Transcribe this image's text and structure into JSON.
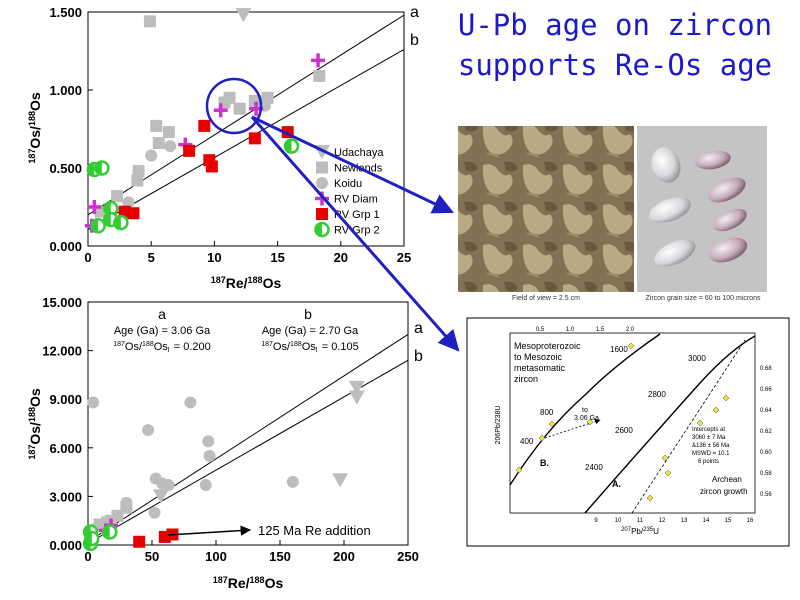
{
  "slide_title": [
    "U-Pb age on zircon",
    "supports Re-Os age"
  ],
  "colors": {
    "title": "#1a1acc",
    "gray": "#bdbdbd",
    "magenta": "#cc33cc",
    "red": "#e60000",
    "green": "#33cc33",
    "arrow": "#2020c0"
  },
  "chart_data": [
    {
      "type": "scatter",
      "xlabel": "187Re/188Os",
      "ylabel": "187Os/188Os",
      "xlim": [
        0,
        25
      ],
      "ylim": [
        0,
        1.5
      ],
      "xticks": [
        "0",
        "5",
        "10",
        "15",
        "20",
        "25"
      ],
      "yticks": [
        "0.000",
        "0.500",
        "1.000",
        "1.500"
      ],
      "line_labels": [
        "a",
        "b"
      ],
      "lines": [
        {
          "name": "a",
          "x": [
            0,
            25
          ],
          "y": [
            0.2,
            1.48
          ]
        },
        {
          "name": "b",
          "x": [
            0,
            25
          ],
          "y": [
            0.105,
            1.26
          ]
        }
      ],
      "legend": {
        "placement": "right"
      },
      "series": [
        {
          "name": "Udachaya",
          "marker": "triangle",
          "color": "#bdbdbd",
          "points": [
            [
              12.3,
              1.48
            ],
            [
              13.5,
              0.92
            ]
          ]
        },
        {
          "name": "Newlands",
          "marker": "square",
          "color": "#bdbdbd",
          "points": [
            [
              4.9,
              1.44
            ],
            [
              5.4,
              0.77
            ],
            [
              5.6,
              0.66
            ],
            [
              6.4,
              0.73
            ],
            [
              3.9,
              0.42
            ],
            [
              4.0,
              0.48
            ],
            [
              2.3,
              0.32
            ],
            [
              1.0,
              0.22
            ],
            [
              10.8,
              0.92
            ],
            [
              11.2,
              0.95
            ],
            [
              12.0,
              0.88
            ],
            [
              13.2,
              0.93
            ],
            [
              14.2,
              0.95
            ],
            [
              18.3,
              1.09
            ]
          ]
        },
        {
          "name": "Koidu",
          "marker": "circle",
          "color": "#bdbdbd",
          "points": [
            [
              6.5,
              0.64
            ],
            [
              5.0,
              0.58
            ],
            [
              3.2,
              0.28
            ],
            [
              14.0,
              0.9
            ]
          ]
        },
        {
          "name": "RV Diam",
          "marker": "plus",
          "color": "#cc33cc",
          "points": [
            [
              18.2,
              1.19
            ],
            [
              13.3,
              0.88
            ],
            [
              10.5,
              0.87
            ],
            [
              7.7,
              0.65
            ],
            [
              0.5,
              0.25
            ],
            [
              0.3,
              0.13
            ]
          ]
        },
        {
          "name": "RV Grp 1",
          "marker": "square",
          "color": "#e60000",
          "points": [
            [
              9.2,
              0.77
            ],
            [
              9.6,
              0.55
            ],
            [
              9.8,
              0.51
            ],
            [
              8.0,
              0.61
            ],
            [
              13.2,
              0.69
            ],
            [
              15.8,
              0.73
            ],
            [
              2.9,
              0.22
            ],
            [
              3.6,
              0.21
            ]
          ]
        },
        {
          "name": "RV Grp 2",
          "marker": "halfcircle",
          "color": "#33cc33",
          "points": [
            [
              0.5,
              0.49
            ],
            [
              1.1,
              0.5
            ],
            [
              1.8,
              0.24
            ],
            [
              1.8,
              0.17
            ],
            [
              2.6,
              0.15
            ],
            [
              0.8,
              0.13
            ],
            [
              16.1,
              0.64
            ]
          ]
        }
      ]
    },
    {
      "type": "scatter",
      "xlabel": "187Re/188Os",
      "ylabel": "187Os/188Os",
      "xlim": [
        0,
        250
      ],
      "ylim": [
        0,
        15
      ],
      "xticks": [
        "0",
        "50",
        "100",
        "150",
        "200",
        "250"
      ],
      "yticks": [
        "0.000",
        "3.000",
        "6.000",
        "9.000",
        "12.000",
        "15.000"
      ],
      "line_labels": [
        "a",
        "b"
      ],
      "lines": [
        {
          "name": "a",
          "x": [
            0,
            250
          ],
          "y": [
            0.2,
            13.0
          ]
        },
        {
          "name": "b",
          "x": [
            0,
            250
          ],
          "y": [
            0.105,
            11.4
          ]
        }
      ],
      "annotations": [
        {
          "label": "a",
          "text": "Age (Ga) = 3.06 Ga",
          "text2_sup1": "187",
          "text2_a": "Os/",
          "text2_sup2": "188",
          "text2_b": "Os",
          "text2_sub": "I",
          "text2_c": "= 0.200"
        },
        {
          "label": "b",
          "text": "Age (Ga) = 2.70 Ga",
          "text2_sup1": "187",
          "text2_a": "Os/",
          "text2_sup2": "188",
          "text2_b": "Os",
          "text2_sub": "I",
          "text2_c": "= 0.105"
        }
      ],
      "arrow_note": "125 Ma Re addition",
      "series": [
        {
          "name": "Udachaya",
          "marker": "triangle",
          "color": "#bdbdbd",
          "points": [
            [
              210,
              9.7
            ],
            [
              210,
              9.1
            ],
            [
              197,
              4.0
            ],
            [
              57,
              3.0
            ],
            [
              10,
              1.2
            ],
            [
              12,
              0.9
            ]
          ]
        },
        {
          "name": "Newlands",
          "marker": "square",
          "color": "#bdbdbd",
          "points": [
            [
              15,
              1.4
            ],
            [
              23,
              1.8
            ],
            [
              30,
              2.3
            ],
            [
              18,
              1.5
            ]
          ]
        },
        {
          "name": "Koidu",
          "marker": "circle",
          "color": "#bdbdbd",
          "points": [
            [
              4,
              8.8
            ],
            [
              80,
              8.8
            ],
            [
              47,
              7.1
            ],
            [
              94,
              6.4
            ],
            [
              95,
              5.5
            ],
            [
              53,
              4.1
            ],
            [
              58,
              3.8
            ],
            [
              63,
              3.7
            ],
            [
              92,
              3.7
            ],
            [
              160,
              3.9
            ],
            [
              30,
              2.6
            ],
            [
              52,
              2.0
            ],
            [
              8,
              1.2
            ]
          ]
        },
        {
          "name": "RV Diam",
          "marker": "plus",
          "color": "#cc33cc",
          "points": [
            [
              18,
              1.2
            ],
            [
              14,
              0.9
            ]
          ]
        },
        {
          "name": "RV Grp 1",
          "marker": "square",
          "color": "#e60000",
          "points": [
            [
              40,
              0.2
            ],
            [
              60,
              0.5
            ],
            [
              66,
              0.65
            ]
          ]
        },
        {
          "name": "RV Grp 2",
          "marker": "halfcircle",
          "color": "#33cc33",
          "points": [
            [
              2,
              0.1
            ],
            [
              2,
              0.8
            ],
            [
              3,
              0.4
            ],
            [
              17,
              0.8
            ]
          ]
        }
      ]
    }
  ],
  "photos": {
    "thin_section_caption": "Field of view = 2.5 cm",
    "zircon_caption": "Zircon grain size = 60 to 100 microns"
  },
  "concordia": {
    "xlabel_sup": "207",
    "xlabel_a": "Pb/",
    "xlabel_sup2": "235",
    "xlabel_b": "U",
    "ylabel": "206Pb/238U",
    "top_ticks": [
      "0.5",
      "1.0",
      "1.5",
      "2.0"
    ],
    "bottom_ticks": [
      "9",
      "10",
      "11",
      "12",
      "13",
      "14",
      "15",
      "16"
    ],
    "right_ticks": [
      "0.68",
      "0.66",
      "0.64",
      "0.62",
      "0.60",
      "0.58",
      "0.56"
    ],
    "text_b_1": "Mesoproterozoic",
    "text_b_2": "to Mesozoic",
    "text_b_3": "metasomatic",
    "text_b_4": "zircon",
    "label_b": "B.",
    "label_a": "A.",
    "age_labels": [
      "1600",
      "3000",
      "800",
      "2800",
      "400",
      "2600",
      "2400"
    ],
    "arrow_to": "to",
    "arrow_age": "3.06 Ga",
    "intercept_1": "Intercepts at",
    "intercept_2": "3060 ± 7 Ma",
    "intercept_3": "&136 ± 56 Ma",
    "intercept_4": "MSWD = 10.1",
    "intercept_5": "6 points",
    "archean_1": "Archean",
    "archean_2": "zircon growth"
  }
}
